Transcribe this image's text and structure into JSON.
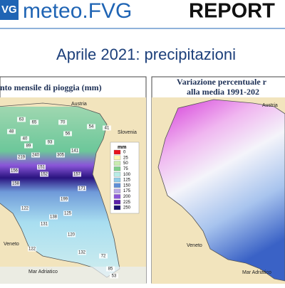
{
  "header": {
    "logo": "VG",
    "brand": "meteo.FVG",
    "report": "REPORT"
  },
  "title": "Aprile 2021: precipitazioni",
  "left_panel": {
    "title": "nto mensile di pioggia (mm)",
    "legend": {
      "title": "mm",
      "items": [
        {
          "label": "0",
          "color": "#e8141c"
        },
        {
          "label": "25",
          "color": "#fff7b2"
        },
        {
          "label": "50",
          "color": "#c9ecb0"
        },
        {
          "label": "75",
          "color": "#7fd08a"
        },
        {
          "label": "100",
          "color": "#b8ece6"
        },
        {
          "label": "125",
          "color": "#8fcbe8"
        },
        {
          "label": "150",
          "color": "#5f8fd6"
        },
        {
          "label": "175",
          "color": "#b9a9e6"
        },
        {
          "label": "200",
          "color": "#8a55d8"
        },
        {
          "label": "225",
          "color": "#5a1fa8"
        },
        {
          "label": "250",
          "color": "#1a1070"
        }
      ]
    },
    "places": [
      "Austria",
      "Slovenia",
      "Veneto",
      "Mar Adriatico"
    ],
    "stations": [
      "63",
      "65",
      "70",
      "54",
      "48",
      "40",
      "41",
      "56",
      "93",
      "89",
      "141",
      "305",
      "240",
      "219",
      "151",
      "156",
      "157",
      "152",
      "171",
      "158",
      "199",
      "122",
      "131",
      "125",
      "138",
      "120",
      "132",
      "72",
      "85",
      "53",
      "122"
    ]
  },
  "right_panel": {
    "title_lines": [
      "Variazione percentuale r",
      "alla media 1991-202"
    ],
    "places": [
      "Austria",
      "Veneto",
      "Mar Adriatico"
    ]
  }
}
